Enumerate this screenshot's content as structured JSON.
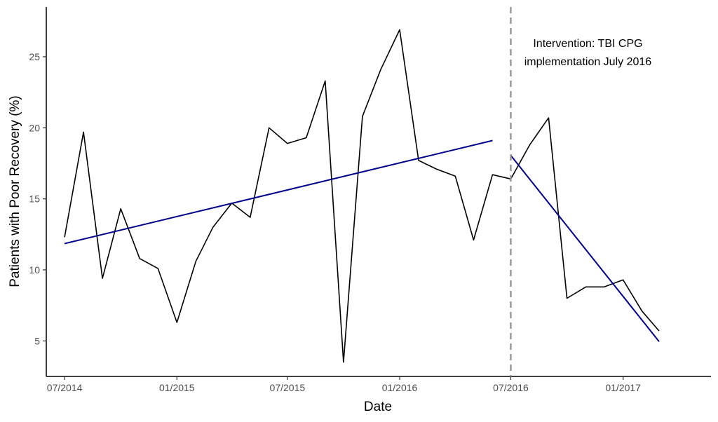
{
  "chart_data": {
    "type": "line",
    "xlabel": "Date",
    "ylabel": "Patients with Poor Recovery (%)",
    "x_tick_labels": [
      "07/2014",
      "01/2015",
      "07/2015",
      "01/2016",
      "07/2016",
      "01/2017"
    ],
    "x_tick_values": [
      "2014-07",
      "2015-01",
      "2015-07",
      "2016-01",
      "2016-07",
      "2017-01"
    ],
    "y_ticks": [
      5,
      10,
      15,
      20,
      25
    ],
    "xlim": [
      "2014-06-01",
      "2017-05-25"
    ],
    "ylim": [
      2.5,
      28.5
    ],
    "grid": false,
    "intervention": {
      "date": "2016-07",
      "label_lines": [
        "Intervention: TBI CPG",
        "implementation July 2016"
      ]
    },
    "series": [
      {
        "role": "observed",
        "color": "#000000",
        "x": [
          "2014-07",
          "2014-08",
          "2014-09",
          "2014-10",
          "2014-11",
          "2014-12",
          "2015-01",
          "2015-02",
          "2015-03",
          "2015-04",
          "2015-05",
          "2015-06",
          "2015-07",
          "2015-08",
          "2015-09",
          "2015-10",
          "2015-11",
          "2015-12",
          "2016-01",
          "2016-02",
          "2016-03",
          "2016-04",
          "2016-05",
          "2016-06",
          "2016-07",
          "2016-08",
          "2016-09",
          "2016-10",
          "2016-11",
          "2016-12",
          "2017-01",
          "2017-02",
          "2017-03"
        ],
        "y": [
          12.3,
          19.7,
          9.4,
          14.3,
          10.8,
          10.1,
          6.3,
          10.6,
          13.0,
          14.7,
          13.7,
          20.0,
          18.9,
          19.3,
          23.3,
          3.5,
          20.8,
          24.1,
          26.9,
          17.7,
          17.1,
          16.6,
          12.1,
          16.7,
          16.4,
          18.8,
          20.7,
          8.0,
          8.8,
          8.8,
          9.3,
          7.1,
          5.7
        ]
      },
      {
        "role": "pre-intervention trend",
        "color": "#00008b",
        "x": [
          "2014-07",
          "2016-06"
        ],
        "y": [
          11.85,
          19.1
        ]
      },
      {
        "role": "post-intervention trend",
        "color": "#00008b",
        "x": [
          "2016-07",
          "2017-03"
        ],
        "y": [
          18.05,
          4.95
        ]
      }
    ]
  }
}
